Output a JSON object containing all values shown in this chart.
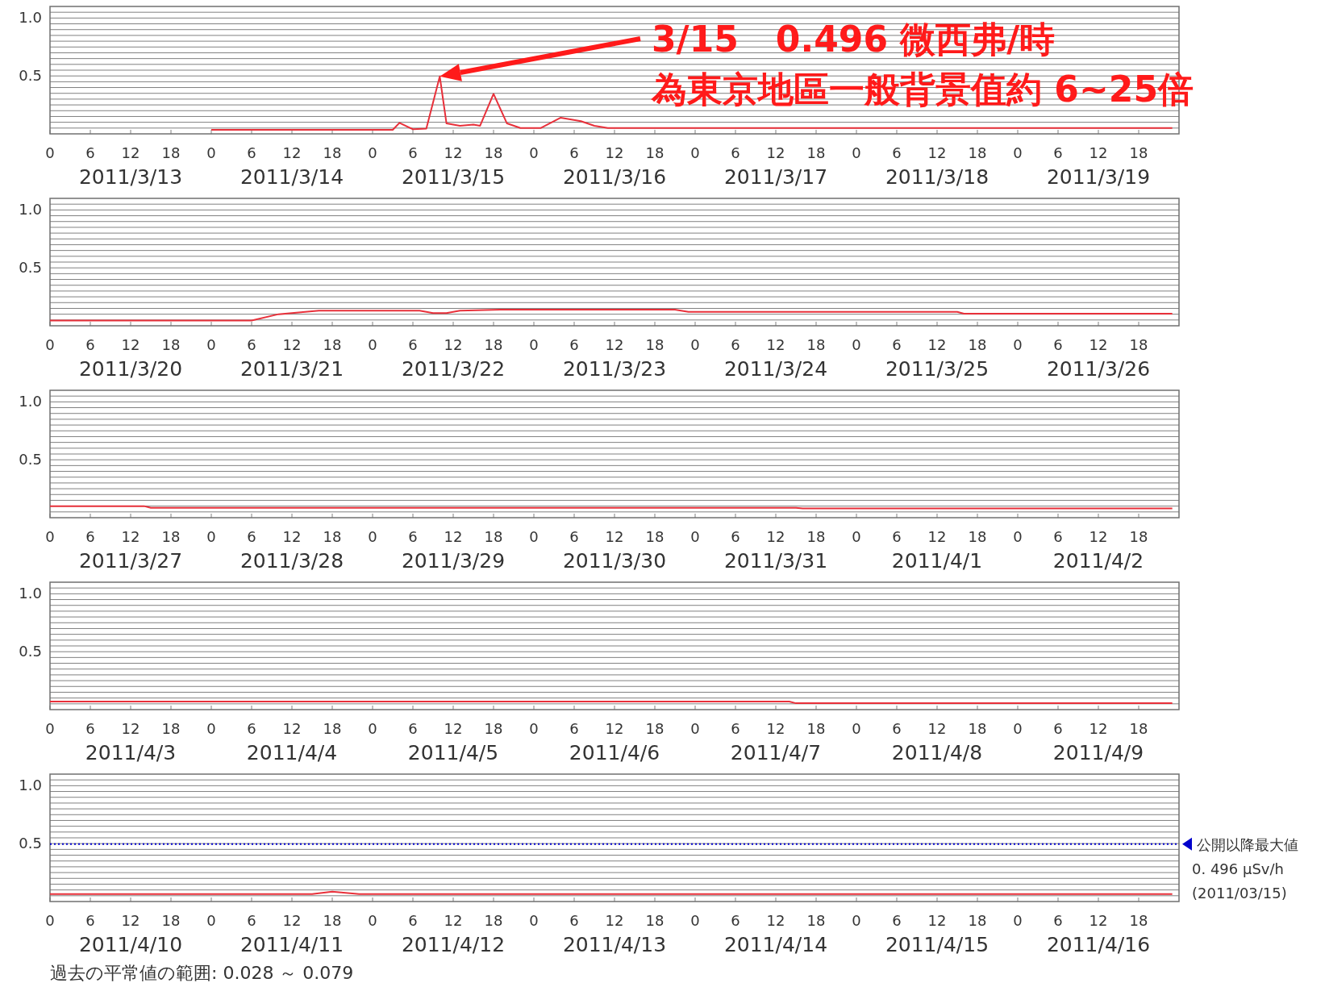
{
  "chart_data": [
    {
      "type": "line",
      "xlim": [
        "2011-03-13T00:00",
        "2011-03-20T00:00"
      ],
      "ylim": [
        0,
        1.1
      ],
      "grid": "y",
      "xticks": [
        {
          "value": "2011-03-13T00:00",
          "label": "0"
        },
        {
          "value": "2011-03-13T06:00",
          "label": "6"
        },
        {
          "value": "2011-03-13T12:00",
          "label": "12"
        },
        {
          "value": "2011-03-13T18:00",
          "label": "18"
        },
        {
          "value": "2011-03-14T00:00",
          "label": "0"
        },
        {
          "value": "2011-03-14T06:00",
          "label": "6"
        },
        {
          "value": "2011-03-14T12:00",
          "label": "12"
        },
        {
          "value": "2011-03-14T18:00",
          "label": "18"
        },
        {
          "value": "2011-03-15T00:00",
          "label": "0"
        },
        {
          "value": "2011-03-15T06:00",
          "label": "6"
        },
        {
          "value": "2011-03-15T12:00",
          "label": "12"
        },
        {
          "value": "2011-03-15T18:00",
          "label": "18"
        },
        {
          "value": "2011-03-16T00:00",
          "label": "0"
        },
        {
          "value": "2011-03-16T06:00",
          "label": "6"
        },
        {
          "value": "2011-03-16T12:00",
          "label": "12"
        },
        {
          "value": "2011-03-16T18:00",
          "label": "18"
        },
        {
          "value": "2011-03-17T00:00",
          "label": "0"
        },
        {
          "value": "2011-03-17T06:00",
          "label": "6"
        },
        {
          "value": "2011-03-17T12:00",
          "label": "12"
        },
        {
          "value": "2011-03-17T18:00",
          "label": "18"
        },
        {
          "value": "2011-03-18T00:00",
          "label": "0"
        },
        {
          "value": "2011-03-18T06:00",
          "label": "6"
        },
        {
          "value": "2011-03-18T12:00",
          "label": "12"
        },
        {
          "value": "2011-03-18T18:00",
          "label": "18"
        },
        {
          "value": "2011-03-19T00:00",
          "label": "0"
        },
        {
          "value": "2011-03-19T06:00",
          "label": "6"
        },
        {
          "value": "2011-03-19T12:00",
          "label": "12"
        },
        {
          "value": "2011-03-19T18:00",
          "label": "18"
        }
      ],
      "yticks": [
        {
          "value": 0.05,
          "label": null
        },
        {
          "value": 0.1,
          "label": null
        },
        {
          "value": 0.15,
          "label": null
        },
        {
          "value": 0.2,
          "label": null
        },
        {
          "value": 0.25,
          "label": null
        },
        {
          "value": 0.3,
          "label": null
        },
        {
          "value": 0.35,
          "label": null
        },
        {
          "value": 0.4,
          "label": null
        },
        {
          "value": 0.45,
          "label": null
        },
        {
          "value": 0.5,
          "label": "0.5"
        },
        {
          "value": 0.55,
          "label": null
        },
        {
          "value": 0.6,
          "label": null
        },
        {
          "value": 0.65,
          "label": null
        },
        {
          "value": 0.7,
          "label": null
        },
        {
          "value": 0.75,
          "label": null
        },
        {
          "value": 0.8,
          "label": null
        },
        {
          "value": 0.85,
          "label": null
        },
        {
          "value": 0.9,
          "label": null
        },
        {
          "value": 0.95,
          "label": null
        },
        {
          "value": 1.0,
          "label": "1.0"
        },
        {
          "value": 1.05,
          "label": null
        }
      ],
      "series": [
        {
          "color": "#e8303a",
          "x": [
            "2011-03-14T00:00",
            "2011-03-15T03:00",
            "2011-03-15T04:00",
            "2011-03-15T06:00",
            "2011-03-15T08:00",
            "2011-03-15T10:00",
            "2011-03-15T11:00",
            "2011-03-15T13:00",
            "2011-03-15T15:00",
            "2011-03-15T16:00",
            "2011-03-15T18:00",
            "2011-03-15T20:00",
            "2011-03-15T22:00",
            "2011-03-16T01:00",
            "2011-03-16T04:00",
            "2011-03-16T07:00",
            "2011-03-16T09:00",
            "2011-03-16T11:00",
            "2011-03-19T23:00"
          ],
          "values": [
            0.035,
            0.035,
            0.095,
            0.04,
            0.045,
            0.496,
            0.09,
            0.07,
            0.08,
            0.07,
            0.345,
            0.09,
            0.05,
            0.05,
            0.14,
            0.11,
            0.07,
            0.05,
            0.05
          ]
        }
      ],
      "title": "3/15   0.496 微西弗/時",
      "subtitle": "為東京地區一般背景值約 6~25倍",
      "annotations": [
        "2011/3/13",
        "2011/3/14",
        "2011/3/15",
        "2011/3/16",
        "2011/3/17",
        "2011/3/18",
        "2011/3/19"
      ]
    },
    {
      "type": "line",
      "xlim": [
        "2011-03-20T00:00",
        "2011-03-27T00:00"
      ],
      "ylim": [
        0,
        1.1
      ],
      "grid": "y",
      "xticks": [
        {
          "value": "2011-03-20T00:00",
          "label": "0"
        },
        {
          "value": "2011-03-20T06:00",
          "label": "6"
        },
        {
          "value": "2011-03-20T12:00",
          "label": "12"
        },
        {
          "value": "2011-03-20T18:00",
          "label": "18"
        },
        {
          "value": "2011-03-21T00:00",
          "label": "0"
        },
        {
          "value": "2011-03-21T06:00",
          "label": "6"
        },
        {
          "value": "2011-03-21T12:00",
          "label": "12"
        },
        {
          "value": "2011-03-21T18:00",
          "label": "18"
        },
        {
          "value": "2011-03-22T00:00",
          "label": "0"
        },
        {
          "value": "2011-03-22T06:00",
          "label": "6"
        },
        {
          "value": "2011-03-22T12:00",
          "label": "12"
        },
        {
          "value": "2011-03-22T18:00",
          "label": "18"
        },
        {
          "value": "2011-03-23T00:00",
          "label": "0"
        },
        {
          "value": "2011-03-23T06:00",
          "label": "6"
        },
        {
          "value": "2011-03-23T12:00",
          "label": "12"
        },
        {
          "value": "2011-03-23T18:00",
          "label": "18"
        },
        {
          "value": "2011-03-24T00:00",
          "label": "0"
        },
        {
          "value": "2011-03-24T06:00",
          "label": "6"
        },
        {
          "value": "2011-03-24T12:00",
          "label": "12"
        },
        {
          "value": "2011-03-24T18:00",
          "label": "18"
        },
        {
          "value": "2011-03-25T00:00",
          "label": "0"
        },
        {
          "value": "2011-03-25T06:00",
          "label": "6"
        },
        {
          "value": "2011-03-25T12:00",
          "label": "12"
        },
        {
          "value": "2011-03-25T18:00",
          "label": "18"
        },
        {
          "value": "2011-03-26T00:00",
          "label": "0"
        },
        {
          "value": "2011-03-26T06:00",
          "label": "6"
        },
        {
          "value": "2011-03-26T12:00",
          "label": "12"
        },
        {
          "value": "2011-03-26T18:00",
          "label": "18"
        }
      ],
      "yticks": [
        {
          "value": 0.05,
          "label": null
        },
        {
          "value": 0.1,
          "label": null
        },
        {
          "value": 0.15,
          "label": null
        },
        {
          "value": 0.2,
          "label": null
        },
        {
          "value": 0.25,
          "label": null
        },
        {
          "value": 0.3,
          "label": null
        },
        {
          "value": 0.35,
          "label": null
        },
        {
          "value": 0.4,
          "label": null
        },
        {
          "value": 0.45,
          "label": null
        },
        {
          "value": 0.5,
          "label": "0.5"
        },
        {
          "value": 0.55,
          "label": null
        },
        {
          "value": 0.6,
          "label": null
        },
        {
          "value": 0.65,
          "label": null
        },
        {
          "value": 0.7,
          "label": null
        },
        {
          "value": 0.75,
          "label": null
        },
        {
          "value": 0.8,
          "label": null
        },
        {
          "value": 0.85,
          "label": null
        },
        {
          "value": 0.9,
          "label": null
        },
        {
          "value": 0.95,
          "label": null
        },
        {
          "value": 1.0,
          "label": "1.0"
        },
        {
          "value": 1.05,
          "label": null
        }
      ],
      "series": [
        {
          "color": "#e8303a",
          "x": [
            "2011-03-20T00:00",
            "2011-03-21T06:00",
            "2011-03-21T10:00",
            "2011-03-21T16:00",
            "2011-03-22T07:00",
            "2011-03-22T09:00",
            "2011-03-22T11:00",
            "2011-03-22T13:00",
            "2011-03-22T19:00",
            "2011-03-23T21:00",
            "2011-03-23T23:00",
            "2011-03-25T15:00",
            "2011-03-25T16:00",
            "2011-03-26T23:00"
          ],
          "values": [
            0.045,
            0.045,
            0.1,
            0.13,
            0.13,
            0.11,
            0.11,
            0.13,
            0.14,
            0.14,
            0.12,
            0.12,
            0.105,
            0.105
          ]
        }
      ],
      "annotations": [
        "2011/3/20",
        "2011/3/21",
        "2011/3/22",
        "2011/3/23",
        "2011/3/24",
        "2011/3/25",
        "2011/3/26"
      ]
    },
    {
      "type": "line",
      "xlim": [
        "2011-03-27T00:00",
        "2011-04-03T00:00"
      ],
      "ylim": [
        0,
        1.1
      ],
      "grid": "y",
      "xticks": [
        {
          "value": "2011-03-27T00:00",
          "label": "0"
        },
        {
          "value": "2011-03-27T06:00",
          "label": "6"
        },
        {
          "value": "2011-03-27T12:00",
          "label": "12"
        },
        {
          "value": "2011-03-27T18:00",
          "label": "18"
        },
        {
          "value": "2011-03-28T00:00",
          "label": "0"
        },
        {
          "value": "2011-03-28T06:00",
          "label": "6"
        },
        {
          "value": "2011-03-28T12:00",
          "label": "12"
        },
        {
          "value": "2011-03-28T18:00",
          "label": "18"
        },
        {
          "value": "2011-03-29T00:00",
          "label": "0"
        },
        {
          "value": "2011-03-29T06:00",
          "label": "6"
        },
        {
          "value": "2011-03-29T12:00",
          "label": "12"
        },
        {
          "value": "2011-03-29T18:00",
          "label": "18"
        },
        {
          "value": "2011-03-30T00:00",
          "label": "0"
        },
        {
          "value": "2011-03-30T06:00",
          "label": "6"
        },
        {
          "value": "2011-03-30T12:00",
          "label": "12"
        },
        {
          "value": "2011-03-30T18:00",
          "label": "18"
        },
        {
          "value": "2011-03-31T00:00",
          "label": "0"
        },
        {
          "value": "2011-03-31T06:00",
          "label": "6"
        },
        {
          "value": "2011-03-31T12:00",
          "label": "12"
        },
        {
          "value": "2011-03-31T18:00",
          "label": "18"
        },
        {
          "value": "2011-04-01T00:00",
          "label": "0"
        },
        {
          "value": "2011-04-01T06:00",
          "label": "6"
        },
        {
          "value": "2011-04-01T12:00",
          "label": "12"
        },
        {
          "value": "2011-04-01T18:00",
          "label": "18"
        },
        {
          "value": "2011-04-02T00:00",
          "label": "0"
        },
        {
          "value": "2011-04-02T06:00",
          "label": "6"
        },
        {
          "value": "2011-04-02T12:00",
          "label": "12"
        },
        {
          "value": "2011-04-02T18:00",
          "label": "18"
        }
      ],
      "yticks": [
        {
          "value": 0.05,
          "label": null
        },
        {
          "value": 0.1,
          "label": null
        },
        {
          "value": 0.15,
          "label": null
        },
        {
          "value": 0.2,
          "label": null
        },
        {
          "value": 0.25,
          "label": null
        },
        {
          "value": 0.3,
          "label": null
        },
        {
          "value": 0.35,
          "label": null
        },
        {
          "value": 0.4,
          "label": null
        },
        {
          "value": 0.45,
          "label": null
        },
        {
          "value": 0.5,
          "label": "0.5"
        },
        {
          "value": 0.55,
          "label": null
        },
        {
          "value": 0.6,
          "label": null
        },
        {
          "value": 0.65,
          "label": null
        },
        {
          "value": 0.7,
          "label": null
        },
        {
          "value": 0.75,
          "label": null
        },
        {
          "value": 0.8,
          "label": null
        },
        {
          "value": 0.85,
          "label": null
        },
        {
          "value": 0.9,
          "label": null
        },
        {
          "value": 0.95,
          "label": null
        },
        {
          "value": 1.0,
          "label": "1.0"
        },
        {
          "value": 1.05,
          "label": null
        }
      ],
      "series": [
        {
          "color": "#e8303a",
          "x": [
            "2011-03-27T00:00",
            "2011-03-27T14:00",
            "2011-03-27T15:00",
            "2011-03-31T15:00",
            "2011-03-31T16:00",
            "2011-04-02T23:00"
          ],
          "values": [
            0.1,
            0.1,
            0.085,
            0.085,
            0.08,
            0.08
          ]
        }
      ],
      "annotations": [
        "2011/3/27",
        "2011/3/28",
        "2011/3/29",
        "2011/3/30",
        "2011/3/31",
        "2011/4/1",
        "2011/4/2"
      ]
    },
    {
      "type": "line",
      "xlim": [
        "2011-04-03T00:00",
        "2011-04-10T00:00"
      ],
      "ylim": [
        0,
        1.1
      ],
      "grid": "y",
      "xticks": [
        {
          "value": "2011-04-03T00:00",
          "label": "0"
        },
        {
          "value": "2011-04-03T06:00",
          "label": "6"
        },
        {
          "value": "2011-04-03T12:00",
          "label": "12"
        },
        {
          "value": "2011-04-03T18:00",
          "label": "18"
        },
        {
          "value": "2011-04-04T00:00",
          "label": "0"
        },
        {
          "value": "2011-04-04T06:00",
          "label": "6"
        },
        {
          "value": "2011-04-04T12:00",
          "label": "12"
        },
        {
          "value": "2011-04-04T18:00",
          "label": "18"
        },
        {
          "value": "2011-04-05T00:00",
          "label": "0"
        },
        {
          "value": "2011-04-05T06:00",
          "label": "6"
        },
        {
          "value": "2011-04-05T12:00",
          "label": "12"
        },
        {
          "value": "2011-04-05T18:00",
          "label": "18"
        },
        {
          "value": "2011-04-06T00:00",
          "label": "0"
        },
        {
          "value": "2011-04-06T06:00",
          "label": "6"
        },
        {
          "value": "2011-04-06T12:00",
          "label": "12"
        },
        {
          "value": "2011-04-06T18:00",
          "label": "18"
        },
        {
          "value": "2011-04-07T00:00",
          "label": "0"
        },
        {
          "value": "2011-04-07T06:00",
          "label": "6"
        },
        {
          "value": "2011-04-07T12:00",
          "label": "12"
        },
        {
          "value": "2011-04-07T18:00",
          "label": "18"
        },
        {
          "value": "2011-04-08T00:00",
          "label": "0"
        },
        {
          "value": "2011-04-08T06:00",
          "label": "6"
        },
        {
          "value": "2011-04-08T12:00",
          "label": "12"
        },
        {
          "value": "2011-04-08T18:00",
          "label": "18"
        },
        {
          "value": "2011-04-09T00:00",
          "label": "0"
        },
        {
          "value": "2011-04-09T06:00",
          "label": "6"
        },
        {
          "value": "2011-04-09T12:00",
          "label": "12"
        },
        {
          "value": "2011-04-09T18:00",
          "label": "18"
        }
      ],
      "yticks": [
        {
          "value": 0.05,
          "label": null
        },
        {
          "value": 0.1,
          "label": null
        },
        {
          "value": 0.15,
          "label": null
        },
        {
          "value": 0.2,
          "label": null
        },
        {
          "value": 0.25,
          "label": null
        },
        {
          "value": 0.3,
          "label": null
        },
        {
          "value": 0.35,
          "label": null
        },
        {
          "value": 0.4,
          "label": null
        },
        {
          "value": 0.45,
          "label": null
        },
        {
          "value": 0.5,
          "label": "0.5"
        },
        {
          "value": 0.55,
          "label": null
        },
        {
          "value": 0.6,
          "label": null
        },
        {
          "value": 0.65,
          "label": null
        },
        {
          "value": 0.7,
          "label": null
        },
        {
          "value": 0.75,
          "label": null
        },
        {
          "value": 0.8,
          "label": null
        },
        {
          "value": 0.85,
          "label": null
        },
        {
          "value": 0.9,
          "label": null
        },
        {
          "value": 0.95,
          "label": null
        },
        {
          "value": 1.0,
          "label": "1.0"
        },
        {
          "value": 1.05,
          "label": null
        }
      ],
      "series": [
        {
          "color": "#e8303a",
          "x": [
            "2011-04-03T00:00",
            "2011-04-07T14:00",
            "2011-04-07T15:00",
            "2011-04-09T23:00"
          ],
          "values": [
            0.07,
            0.07,
            0.055,
            0.055
          ]
        }
      ],
      "annotations": [
        "2011/4/3",
        "2011/4/4",
        "2011/4/5",
        "2011/4/6",
        "2011/4/7",
        "2011/4/8",
        "2011/4/9"
      ]
    },
    {
      "type": "line",
      "xlim": [
        "2011-04-10T00:00",
        "2011-04-17T00:00"
      ],
      "ylim": [
        0,
        1.1
      ],
      "grid": "y",
      "xticks": [
        {
          "value": "2011-04-10T00:00",
          "label": "0"
        },
        {
          "value": "2011-04-10T06:00",
          "label": "6"
        },
        {
          "value": "2011-04-10T12:00",
          "label": "12"
        },
        {
          "value": "2011-04-10T18:00",
          "label": "18"
        },
        {
          "value": "2011-04-11T00:00",
          "label": "0"
        },
        {
          "value": "2011-04-11T06:00",
          "label": "6"
        },
        {
          "value": "2011-04-11T12:00",
          "label": "12"
        },
        {
          "value": "2011-04-11T18:00",
          "label": "18"
        },
        {
          "value": "2011-04-12T00:00",
          "label": "0"
        },
        {
          "value": "2011-04-12T06:00",
          "label": "6"
        },
        {
          "value": "2011-04-12T12:00",
          "label": "12"
        },
        {
          "value": "2011-04-12T18:00",
          "label": "18"
        },
        {
          "value": "2011-04-13T00:00",
          "label": "0"
        },
        {
          "value": "2011-04-13T06:00",
          "label": "6"
        },
        {
          "value": "2011-04-13T12:00",
          "label": "12"
        },
        {
          "value": "2011-04-13T18:00",
          "label": "18"
        },
        {
          "value": "2011-04-14T00:00",
          "label": "0"
        },
        {
          "value": "2011-04-14T06:00",
          "label": "6"
        },
        {
          "value": "2011-04-14T12:00",
          "label": "12"
        },
        {
          "value": "2011-04-14T18:00",
          "label": "18"
        },
        {
          "value": "2011-04-15T00:00",
          "label": "0"
        },
        {
          "value": "2011-04-15T06:00",
          "label": "6"
        },
        {
          "value": "2011-04-15T12:00",
          "label": "12"
        },
        {
          "value": "2011-04-15T18:00",
          "label": "18"
        },
        {
          "value": "2011-04-16T00:00",
          "label": "0"
        },
        {
          "value": "2011-04-16T06:00",
          "label": "6"
        },
        {
          "value": "2011-04-16T12:00",
          "label": "12"
        },
        {
          "value": "2011-04-16T18:00",
          "label": "18"
        }
      ],
      "yticks": [
        {
          "value": 0.05,
          "label": null
        },
        {
          "value": 0.1,
          "label": null
        },
        {
          "value": 0.15,
          "label": null
        },
        {
          "value": 0.2,
          "label": null
        },
        {
          "value": 0.25,
          "label": null
        },
        {
          "value": 0.3,
          "label": null
        },
        {
          "value": 0.35,
          "label": null
        },
        {
          "value": 0.4,
          "label": null
        },
        {
          "value": 0.45,
          "label": null
        },
        {
          "value": 0.5,
          "label": "0.5"
        },
        {
          "value": 0.55,
          "label": null
        },
        {
          "value": 0.6,
          "label": null
        },
        {
          "value": 0.65,
          "label": null
        },
        {
          "value": 0.7,
          "label": null
        },
        {
          "value": 0.75,
          "label": null
        },
        {
          "value": 0.8,
          "label": null
        },
        {
          "value": 0.85,
          "label": null
        },
        {
          "value": 0.9,
          "label": null
        },
        {
          "value": 0.95,
          "label": null
        },
        {
          "value": 1.0,
          "label": "1.0"
        },
        {
          "value": 1.05,
          "label": null
        }
      ],
      "series": [
        {
          "color": "#e8303a",
          "x": [
            "2011-04-10T00:00",
            "2011-04-11T15:00",
            "2011-04-11T18:00",
            "2011-04-11T22:00",
            "2011-04-16T23:00"
          ],
          "values": [
            0.065,
            0.065,
            0.085,
            0.065,
            0.065
          ]
        }
      ],
      "ref_lines": [
        {
          "axis": "y",
          "value": 0.496,
          "color": "#0000cc",
          "line_style": "dotted",
          "label": "公開以降最大値\n0. 496 μSv/h\n(2011/03/15)"
        }
      ],
      "annotations": [
        "2011/4/10",
        "2011/4/11",
        "2011/4/12",
        "2011/4/13",
        "2011/4/14",
        "2011/4/15",
        "2011/4/16",
        "過去の平常値の範囲: 0.028 ～ 0.079"
      ]
    }
  ]
}
